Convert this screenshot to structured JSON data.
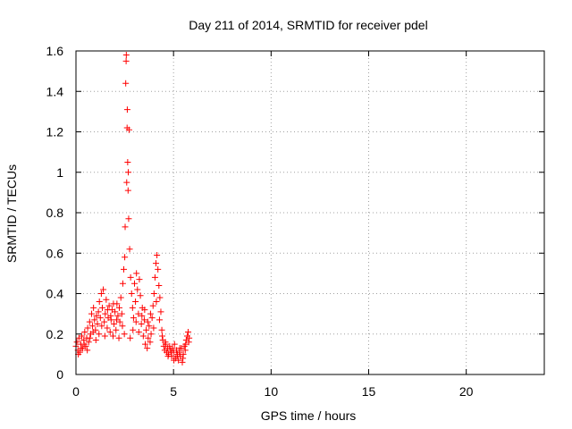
{
  "chart_data": {
    "type": "scatter",
    "title": "Day 211 of 2014, SRMTID for receiver pdel",
    "xlabel": "GPS time / hours",
    "ylabel": "SRMTID / TECUs",
    "xlim": [
      0,
      24
    ],
    "ylim": [
      0,
      1.6
    ],
    "xticks": [
      0,
      5,
      10,
      15,
      20
    ],
    "xtick_labels": [
      "0",
      "5",
      "10",
      "15",
      "20"
    ],
    "yticks": [
      0,
      0.2,
      0.4,
      0.6,
      0.8,
      1,
      1.2,
      1.4,
      1.6
    ],
    "ytick_labels": [
      "0",
      "0.2",
      "0.4",
      "0.6",
      "0.8",
      "1",
      "1.2",
      "1.4",
      "1.6"
    ],
    "grid": true,
    "marker": "+",
    "series": [
      {
        "name": "SRMTID",
        "color": "#ff0000",
        "points": [
          [
            0.0,
            0.14
          ],
          [
            0.05,
            0.16
          ],
          [
            0.1,
            0.12
          ],
          [
            0.15,
            0.18
          ],
          [
            0.2,
            0.11
          ],
          [
            0.25,
            0.15
          ],
          [
            0.3,
            0.19
          ],
          [
            0.35,
            0.13
          ],
          [
            0.4,
            0.17
          ],
          [
            0.45,
            0.21
          ],
          [
            0.5,
            0.14
          ],
          [
            0.55,
            0.18
          ],
          [
            0.6,
            0.23
          ],
          [
            0.65,
            0.16
          ],
          [
            0.7,
            0.26
          ],
          [
            0.75,
            0.2
          ],
          [
            0.8,
            0.3
          ],
          [
            0.85,
            0.24
          ],
          [
            0.9,
            0.33
          ],
          [
            0.95,
            0.27
          ],
          [
            1.0,
            0.22
          ],
          [
            1.05,
            0.29
          ],
          [
            1.1,
            0.25
          ],
          [
            1.15,
            0.31
          ],
          [
            1.2,
            0.36
          ],
          [
            1.25,
            0.28
          ],
          [
            1.3,
            0.4
          ],
          [
            1.35,
            0.33
          ],
          [
            1.4,
            0.42
          ],
          [
            1.45,
            0.26
          ],
          [
            1.5,
            0.3
          ],
          [
            1.55,
            0.37
          ],
          [
            1.6,
            0.23
          ],
          [
            1.65,
            0.28
          ],
          [
            1.7,
            0.34
          ],
          [
            1.75,
            0.21
          ],
          [
            1.8,
            0.27
          ],
          [
            1.85,
            0.32
          ],
          [
            1.9,
            0.19
          ],
          [
            1.95,
            0.25
          ],
          [
            2.0,
            0.31
          ],
          [
            2.05,
            0.22
          ],
          [
            2.1,
            0.35
          ],
          [
            2.15,
            0.29
          ],
          [
            2.2,
            0.18
          ],
          [
            2.25,
            0.26
          ],
          [
            2.3,
            0.38
          ],
          [
            2.35,
            0.3
          ],
          [
            2.4,
            0.45
          ],
          [
            2.45,
            0.52
          ],
          [
            2.5,
            0.58
          ],
          [
            2.52,
            0.73
          ],
          [
            2.55,
            1.44
          ],
          [
            2.57,
            1.55
          ],
          [
            2.58,
            1.58
          ],
          [
            2.6,
            0.95
          ],
          [
            2.62,
            1.22
          ],
          [
            2.63,
            1.31
          ],
          [
            2.65,
            1.05
          ],
          [
            2.67,
            0.91
          ],
          [
            2.68,
            1.0
          ],
          [
            2.7,
            0.77
          ],
          [
            2.72,
            1.21
          ],
          [
            2.75,
            0.62
          ],
          [
            2.8,
            0.48
          ],
          [
            2.85,
            0.4
          ],
          [
            2.9,
            0.33
          ],
          [
            2.95,
            0.28
          ],
          [
            3.0,
            0.45
          ],
          [
            3.05,
            0.36
          ],
          [
            3.1,
            0.5
          ],
          [
            3.15,
            0.42
          ],
          [
            3.2,
            0.3
          ],
          [
            3.25,
            0.47
          ],
          [
            3.3,
            0.39
          ],
          [
            3.35,
            0.25
          ],
          [
            3.4,
            0.33
          ],
          [
            3.45,
            0.19
          ],
          [
            3.5,
            0.27
          ],
          [
            3.55,
            0.15
          ],
          [
            3.6,
            0.22
          ],
          [
            3.65,
            0.13
          ],
          [
            3.7,
            0.18
          ],
          [
            3.75,
            0.24
          ],
          [
            3.8,
            0.16
          ],
          [
            3.85,
            0.2
          ],
          [
            3.9,
            0.28
          ],
          [
            3.95,
            0.34
          ],
          [
            4.0,
            0.4
          ],
          [
            4.05,
            0.48
          ],
          [
            4.1,
            0.55
          ],
          [
            4.15,
            0.59
          ],
          [
            4.2,
            0.52
          ],
          [
            4.25,
            0.44
          ],
          [
            4.3,
            0.38
          ],
          [
            4.35,
            0.31
          ],
          [
            4.4,
            0.22
          ],
          [
            4.45,
            0.17
          ],
          [
            4.5,
            0.14
          ],
          [
            4.55,
            0.12
          ],
          [
            4.6,
            0.15
          ],
          [
            4.65,
            0.11
          ],
          [
            4.7,
            0.13
          ],
          [
            4.75,
            0.1
          ],
          [
            4.8,
            0.14
          ],
          [
            4.85,
            0.12
          ],
          [
            4.9,
            0.09
          ],
          [
            4.95,
            0.13
          ],
          [
            5.0,
            0.11
          ],
          [
            5.05,
            0.15
          ],
          [
            5.1,
            0.08
          ],
          [
            5.15,
            0.12
          ],
          [
            5.2,
            0.1
          ],
          [
            5.25,
            0.07
          ],
          [
            5.3,
            0.11
          ],
          [
            5.35,
            0.09
          ],
          [
            5.4,
            0.13
          ],
          [
            5.45,
            0.06
          ],
          [
            5.5,
            0.1
          ],
          [
            5.55,
            0.14
          ],
          [
            5.6,
            0.12
          ],
          [
            5.65,
            0.17
          ],
          [
            5.7,
            0.19
          ],
          [
            5.75,
            0.21
          ],
          [
            5.8,
            0.18
          ],
          [
            0.12,
            0.1
          ],
          [
            0.28,
            0.13
          ],
          [
            0.42,
            0.15
          ],
          [
            0.58,
            0.12
          ],
          [
            0.72,
            0.18
          ],
          [
            0.88,
            0.21
          ],
          [
            1.02,
            0.17
          ],
          [
            1.18,
            0.2
          ],
          [
            1.32,
            0.24
          ],
          [
            1.48,
            0.19
          ],
          [
            1.62,
            0.32
          ],
          [
            1.78,
            0.29
          ],
          [
            1.92,
            0.35
          ],
          [
            2.08,
            0.27
          ],
          [
            2.22,
            0.33
          ],
          [
            2.38,
            0.24
          ],
          [
            2.48,
            0.2
          ],
          [
            2.78,
            0.18
          ],
          [
            2.92,
            0.22
          ],
          [
            3.08,
            0.26
          ],
          [
            3.22,
            0.21
          ],
          [
            3.38,
            0.29
          ],
          [
            3.52,
            0.32
          ],
          [
            3.68,
            0.26
          ],
          [
            3.82,
            0.3
          ],
          [
            3.98,
            0.23
          ],
          [
            4.12,
            0.36
          ],
          [
            4.28,
            0.27
          ],
          [
            4.42,
            0.19
          ],
          [
            4.58,
            0.16
          ],
          [
            4.72,
            0.09
          ],
          [
            4.88,
            0.11
          ],
          [
            5.02,
            0.07
          ],
          [
            5.18,
            0.09
          ],
          [
            5.32,
            0.13
          ],
          [
            5.48,
            0.08
          ],
          [
            5.62,
            0.15
          ],
          [
            5.78,
            0.16
          ]
        ]
      }
    ]
  }
}
